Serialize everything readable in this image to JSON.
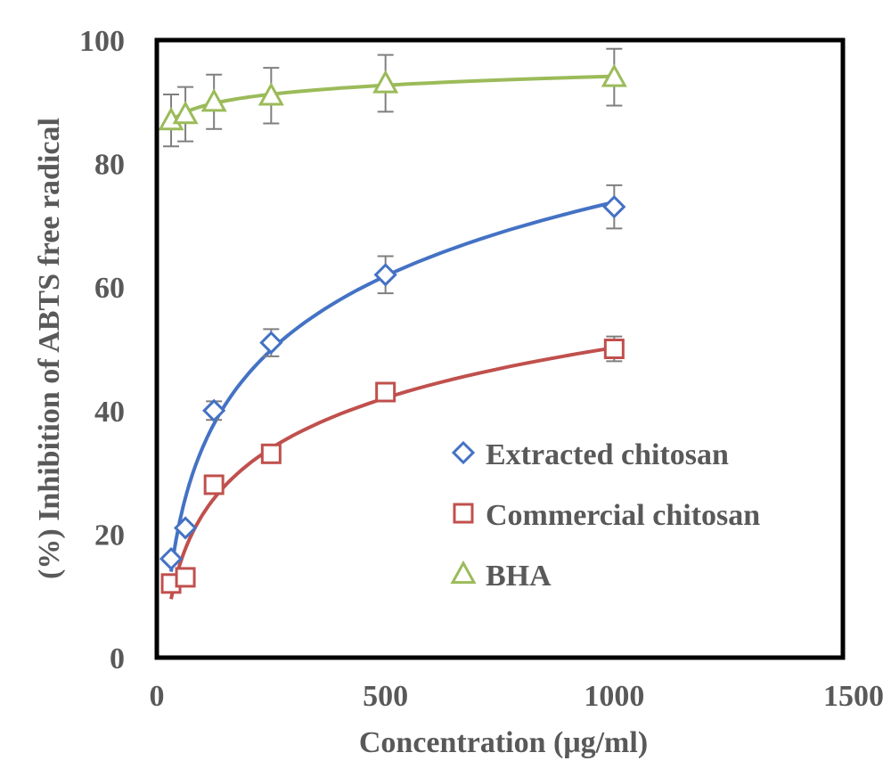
{
  "chart_data": {
    "type": "scatter",
    "xlabel": "Concentration (μg/ml)",
    "ylabel": "(%)  Inhibition of ABTS free radical",
    "xlim": [
      0,
      1500
    ],
    "ylim": [
      0,
      100
    ],
    "xticks": [
      0,
      500,
      1000,
      1500
    ],
    "yticks": [
      0,
      20,
      40,
      60,
      80,
      100
    ],
    "grid": false,
    "legend": "bottom-right",
    "series": [
      {
        "name": "Extracted chitosan",
        "marker": "diamond",
        "color": "#4472c4",
        "x": [
          31.25,
          62.5,
          125,
          250,
          500,
          1000
        ],
        "y": [
          16,
          21,
          40,
          51,
          62,
          73
        ],
        "err": [
          0.5,
          0.5,
          1.5,
          2.2,
          3.0,
          3.5
        ]
      },
      {
        "name": "Commercial chitosan",
        "marker": "square",
        "color": "#c0504d",
        "x": [
          31.25,
          62.5,
          125,
          250,
          500,
          1000
        ],
        "y": [
          12,
          13,
          28,
          33,
          43,
          50
        ],
        "err": [
          0.5,
          0.5,
          0.5,
          0.5,
          1.0,
          2.0
        ]
      },
      {
        "name": "BHA",
        "marker": "triangle",
        "color": "#9bbb59",
        "x": [
          31.25,
          62.5,
          125,
          250,
          500,
          1000
        ],
        "y": [
          87,
          88,
          90,
          91,
          93,
          94
        ],
        "err": [
          4.2,
          4.4,
          4.4,
          4.5,
          4.6,
          4.6
        ]
      }
    ]
  }
}
